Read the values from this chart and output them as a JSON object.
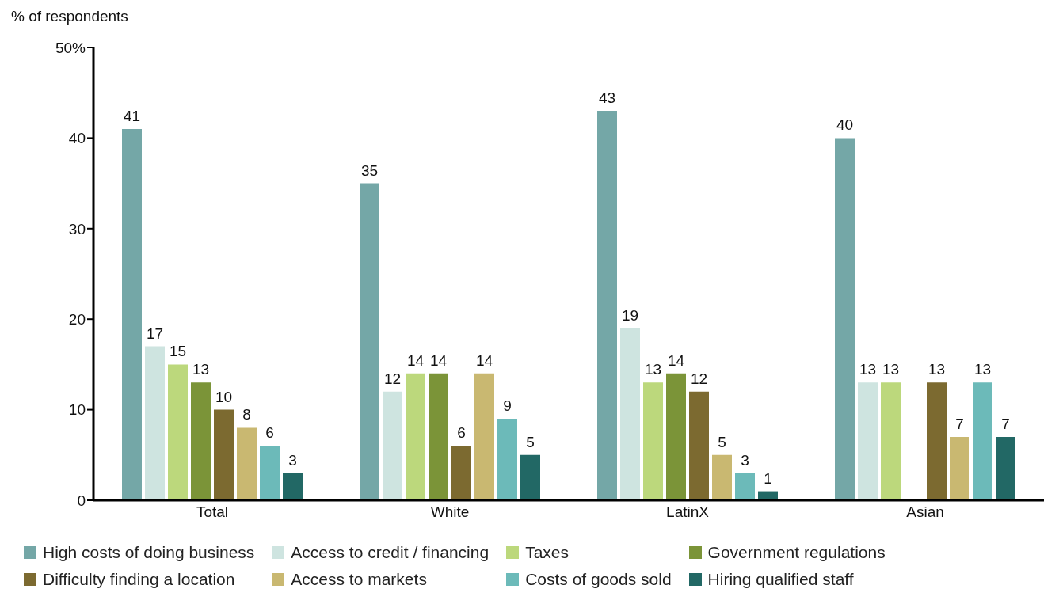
{
  "chart_data": {
    "type": "bar",
    "ylabel": "% of respondents",
    "categories": [
      "Total",
      "White",
      "LatinX",
      "Asian"
    ],
    "series": [
      {
        "name": "High costs of doing business",
        "color": "#74a7a7",
        "values": [
          41,
          35,
          43,
          40
        ]
      },
      {
        "name": "Access to credit / financing",
        "color": "#cee4e0",
        "values": [
          17,
          12,
          19,
          13
        ]
      },
      {
        "name": "Taxes",
        "color": "#bcd87c",
        "values": [
          15,
          14,
          13,
          13
        ]
      },
      {
        "name": "Government regulations",
        "color": "#7b9438",
        "values": [
          13,
          14,
          14,
          null
        ]
      },
      {
        "name": "Difficulty finding a location",
        "color": "#7c6a30",
        "values": [
          10,
          6,
          12,
          13
        ]
      },
      {
        "name": "Access to markets",
        "color": "#c9b871",
        "values": [
          8,
          14,
          5,
          7
        ]
      },
      {
        "name": "Costs of goods sold",
        "color": "#6cbab9",
        "values": [
          6,
          9,
          3,
          13
        ]
      },
      {
        "name": "Hiring qualified staff",
        "color": "#226865",
        "values": [
          3,
          5,
          1,
          7
        ]
      }
    ],
    "ylim": [
      0,
      50
    ],
    "yticks": [
      0,
      10,
      20,
      30,
      40,
      {
        "value": 50,
        "label": "50%"
      }
    ],
    "grid": false,
    "legend": "bottom",
    "data_labels": true
  }
}
